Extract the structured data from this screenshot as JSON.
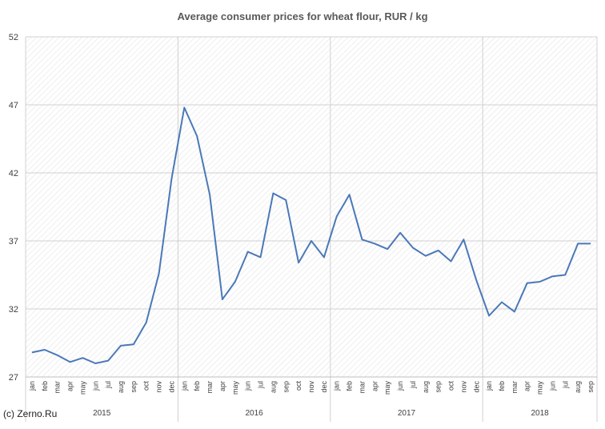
{
  "chart_data": {
    "type": "line",
    "title": "Average consumer prices for wheat flour, RUR / kg",
    "xlabel": "",
    "ylabel": "",
    "ylim": [
      27,
      52
    ],
    "yticks": [
      27,
      32,
      37,
      42,
      47,
      52
    ],
    "grid": true,
    "legend": "none",
    "line_color": "#4a78b8",
    "years": [
      {
        "label": "2015",
        "months": 12
      },
      {
        "label": "2016",
        "months": 12
      },
      {
        "label": "2017",
        "months": 12
      },
      {
        "label": "2018",
        "months": 9
      }
    ],
    "categories": [
      "jan",
      "feb",
      "mar",
      "apr",
      "may",
      "jun",
      "jul",
      "aug",
      "sep",
      "oct",
      "nov",
      "dec",
      "jan",
      "feb",
      "mar",
      "apr",
      "may",
      "jun",
      "jul",
      "aug",
      "sep",
      "oct",
      "nov",
      "dec",
      "jan",
      "feb",
      "mar",
      "apr",
      "may",
      "jun",
      "jul",
      "aug",
      "sep",
      "oct",
      "nov",
      "dec",
      "jan",
      "feb",
      "mar",
      "apr",
      "may",
      "jun",
      "jul",
      "aug",
      "sep"
    ],
    "values": [
      28.8,
      29.0,
      28.6,
      28.1,
      28.4,
      28.0,
      28.2,
      29.3,
      29.4,
      31.0,
      34.6,
      41.6,
      46.8,
      44.7,
      40.4,
      32.7,
      34.0,
      36.2,
      35.8,
      40.5,
      40.0,
      35.4,
      37.0,
      35.8,
      38.8,
      40.4,
      37.1,
      36.8,
      36.4,
      37.6,
      36.5,
      35.9,
      36.3,
      35.5,
      37.1,
      34.1,
      31.5,
      32.5,
      31.8,
      33.9,
      34.0,
      34.4,
      34.5,
      36.8,
      36.8
    ]
  },
  "footer": {
    "credit": "(c) Zerno.Ru"
  }
}
